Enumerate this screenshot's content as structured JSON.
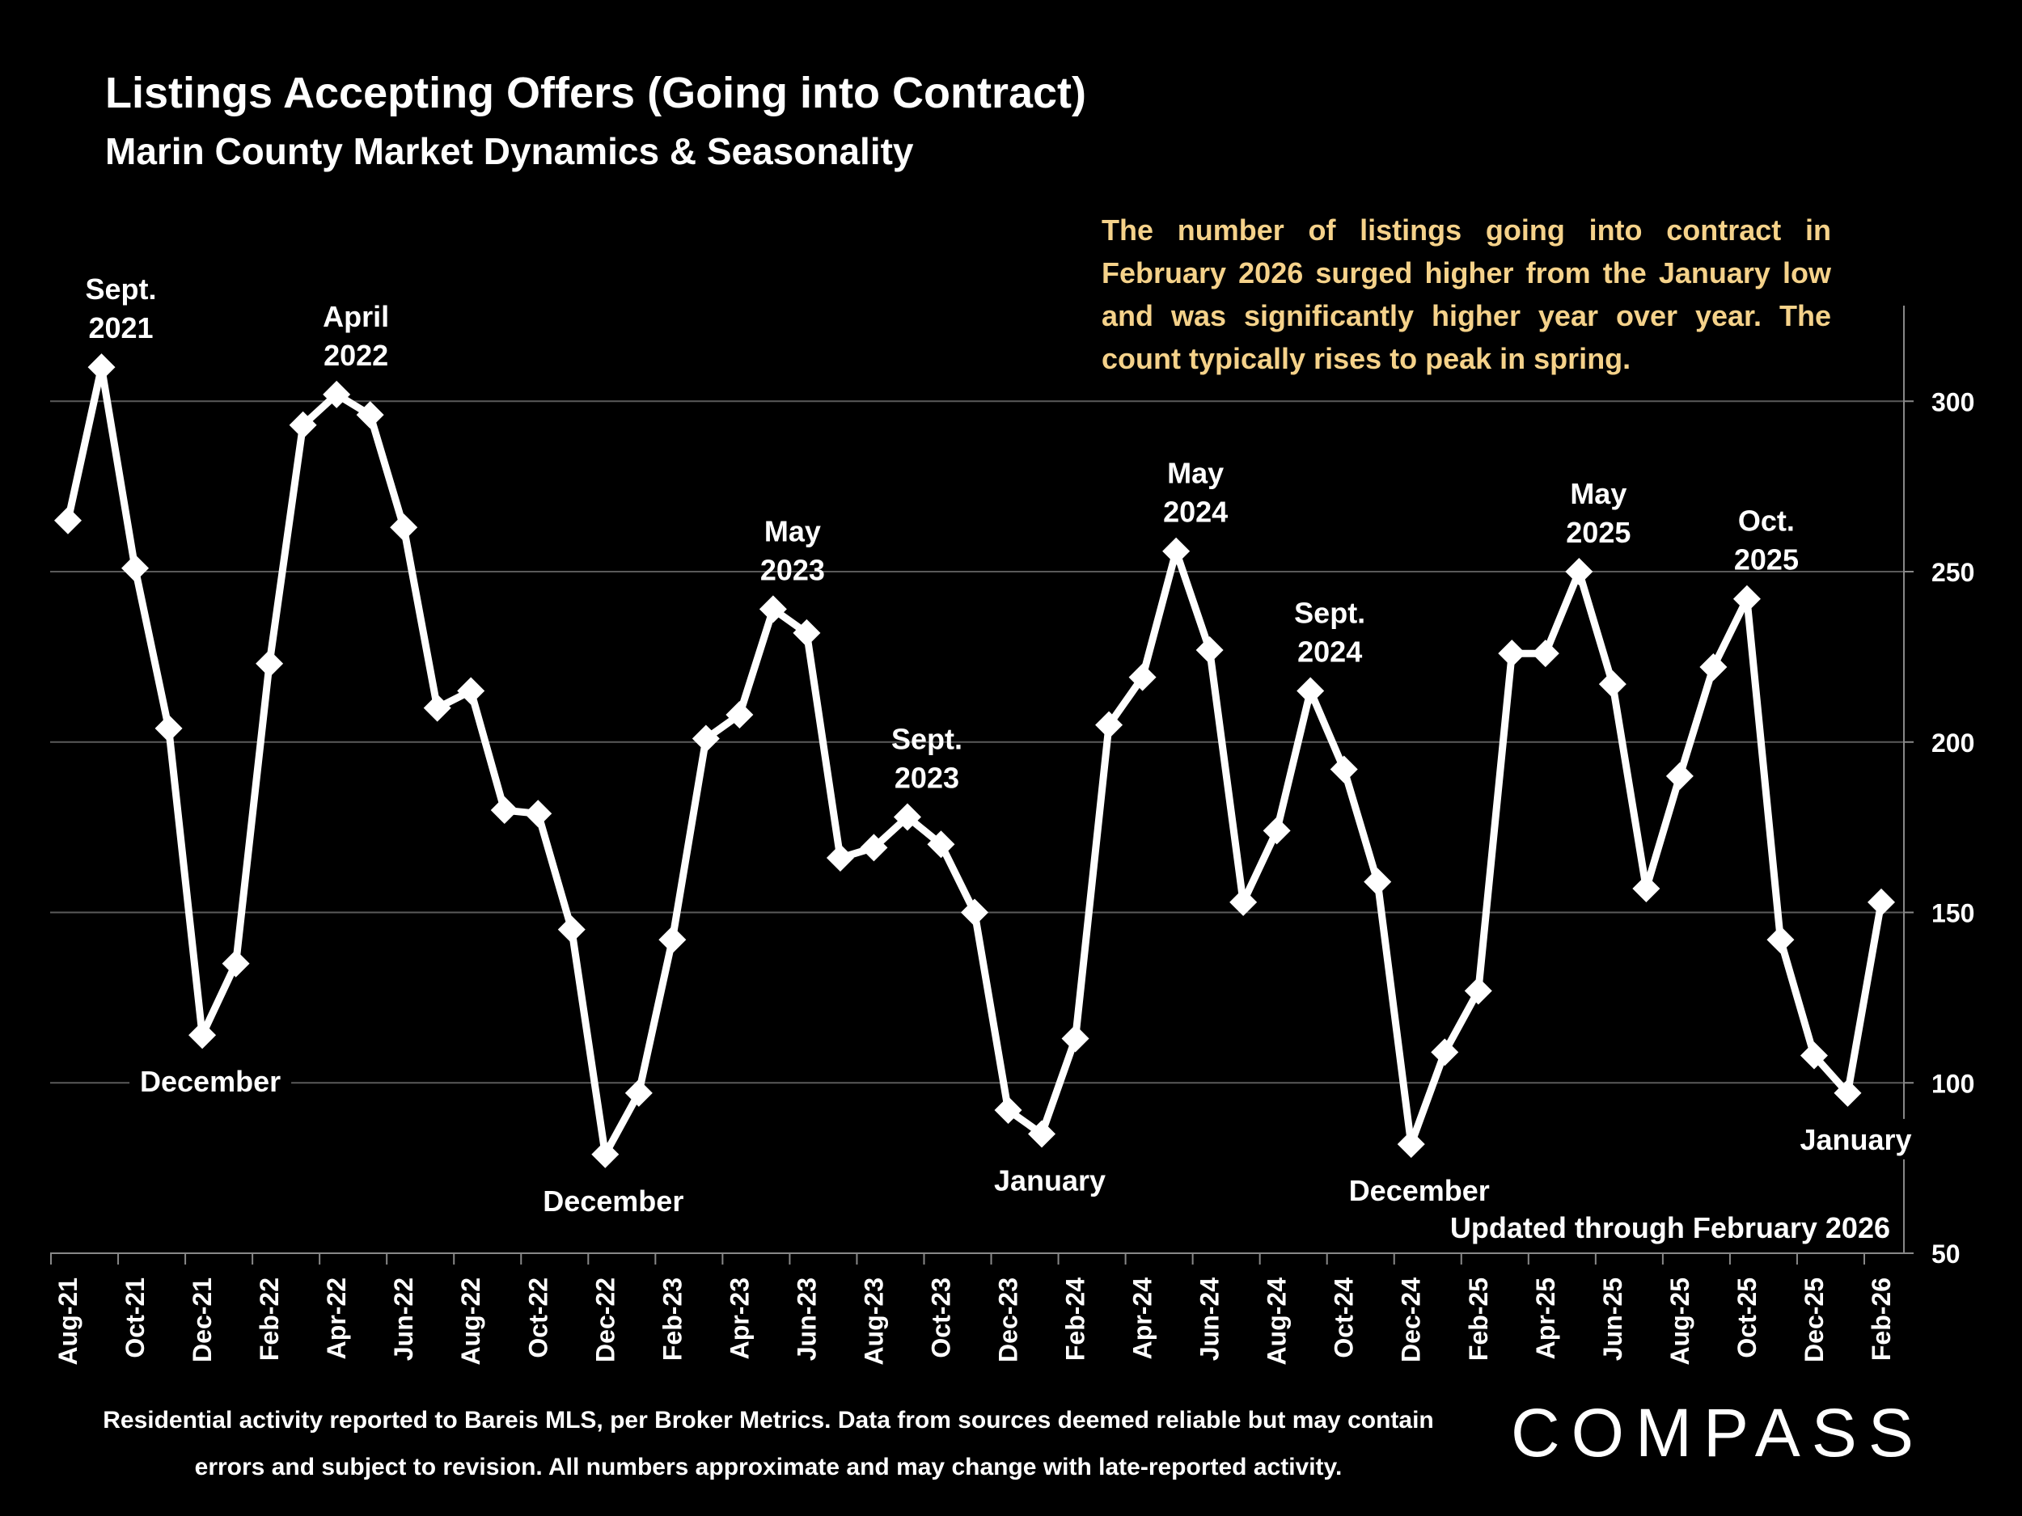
{
  "title": "Listings Accepting Offers (Going into Contract)",
  "subtitle": "Marin County Market Dynamics & Seasonality",
  "note": "The number of listings going into contract in February 2026 surged higher from the January low and was significantly higher year over year. The count typically rises to peak in spring.",
  "updated": "Updated through February 2026",
  "footer": "Residential activity reported to Bareis MLS, per Broker Metrics. Data from sources deemed reliable but may contain errors and subject to revision. All numbers approximate and may change with late-reported activity.",
  "logo": "COMPASS",
  "colors": {
    "background": "#000000",
    "line": "#ffffff",
    "grid": "#5a5a5a",
    "note": "#f5d28a"
  },
  "chart_data": {
    "type": "line",
    "title": "Listings Accepting Offers (Going into Contract)",
    "ylim": [
      50,
      330
    ],
    "yticks": [
      50,
      100,
      150,
      200,
      250,
      300
    ],
    "grid": true,
    "y_axis_side": "right",
    "x": [
      "Aug-21",
      "Sep-21",
      "Oct-21",
      "Nov-21",
      "Dec-21",
      "Jan-22",
      "Feb-22",
      "Mar-22",
      "Apr-22",
      "May-22",
      "Jun-22",
      "Jul-22",
      "Aug-22",
      "Sep-22",
      "Oct-22",
      "Nov-22",
      "Dec-22",
      "Jan-23",
      "Feb-23",
      "Mar-23",
      "Apr-23",
      "May-23",
      "Jun-23",
      "Jul-23",
      "Aug-23",
      "Sep-23",
      "Oct-23",
      "Nov-23",
      "Dec-23",
      "Jan-24",
      "Feb-24",
      "Mar-24",
      "Apr-24",
      "May-24",
      "Jun-24",
      "Jul-24",
      "Aug-24",
      "Sep-24",
      "Oct-24",
      "Nov-24",
      "Dec-24",
      "Jan-25",
      "Feb-25",
      "Mar-25",
      "Apr-25",
      "May-25",
      "Jun-25",
      "Jul-25",
      "Aug-25",
      "Sep-25",
      "Oct-25",
      "Nov-25",
      "Dec-25",
      "Jan-26",
      "Feb-26"
    ],
    "xtick_labels": [
      "Aug-21",
      "Oct-21",
      "Dec-21",
      "Feb-22",
      "Apr-22",
      "Jun-22",
      "Aug-22",
      "Oct-22",
      "Dec-22",
      "Feb-23",
      "Apr-23",
      "Jun-23",
      "Aug-23",
      "Oct-23",
      "Dec-23",
      "Feb-24",
      "Apr-24",
      "Jun-24",
      "Aug-24",
      "Oct-24",
      "Dec-24",
      "Feb-25",
      "Apr-25",
      "Jun-25",
      "Aug-25",
      "Oct-25",
      "Dec-25",
      "Feb-26"
    ],
    "series": [
      {
        "name": "Listings Accepting Offers",
        "values": [
          265,
          310,
          251,
          204,
          114,
          135,
          223,
          293,
          302,
          296,
          263,
          210,
          215,
          180,
          179,
          145,
          79,
          97,
          142,
          201,
          208,
          239,
          232,
          166,
          169,
          178,
          170,
          150,
          92,
          85,
          113,
          205,
          219,
          256,
          227,
          153,
          174,
          215,
          192,
          159,
          82,
          109,
          127,
          226,
          226,
          250,
          217,
          157,
          190,
          222,
          242,
          142,
          108,
          97,
          153
        ]
      }
    ],
    "annotations": [
      {
        "lines": [
          "Sept.",
          "2021"
        ],
        "index": 1,
        "pos": "above"
      },
      {
        "lines": [
          "April",
          "2022"
        ],
        "index": 8,
        "pos": "above"
      },
      {
        "lines": [
          "December"
        ],
        "index": 4,
        "pos": "below"
      },
      {
        "lines": [
          "May",
          "2023"
        ],
        "index": 21,
        "pos": "above"
      },
      {
        "lines": [
          "Sept.",
          "2023"
        ],
        "index": 25,
        "pos": "above"
      },
      {
        "lines": [
          "December"
        ],
        "index": 16,
        "pos": "below"
      },
      {
        "lines": [
          "January"
        ],
        "index": 29,
        "pos": "below"
      },
      {
        "lines": [
          "May",
          "2024"
        ],
        "index": 33,
        "pos": "above"
      },
      {
        "lines": [
          "Sept.",
          "2024"
        ],
        "index": 37,
        "pos": "above"
      },
      {
        "lines": [
          "December"
        ],
        "index": 40,
        "pos": "below"
      },
      {
        "lines": [
          "May",
          "2025"
        ],
        "index": 45,
        "pos": "above"
      },
      {
        "lines": [
          "Oct.",
          "2025"
        ],
        "index": 50,
        "pos": "above"
      },
      {
        "lines": [
          "January"
        ],
        "index": 53,
        "pos": "below"
      }
    ]
  }
}
